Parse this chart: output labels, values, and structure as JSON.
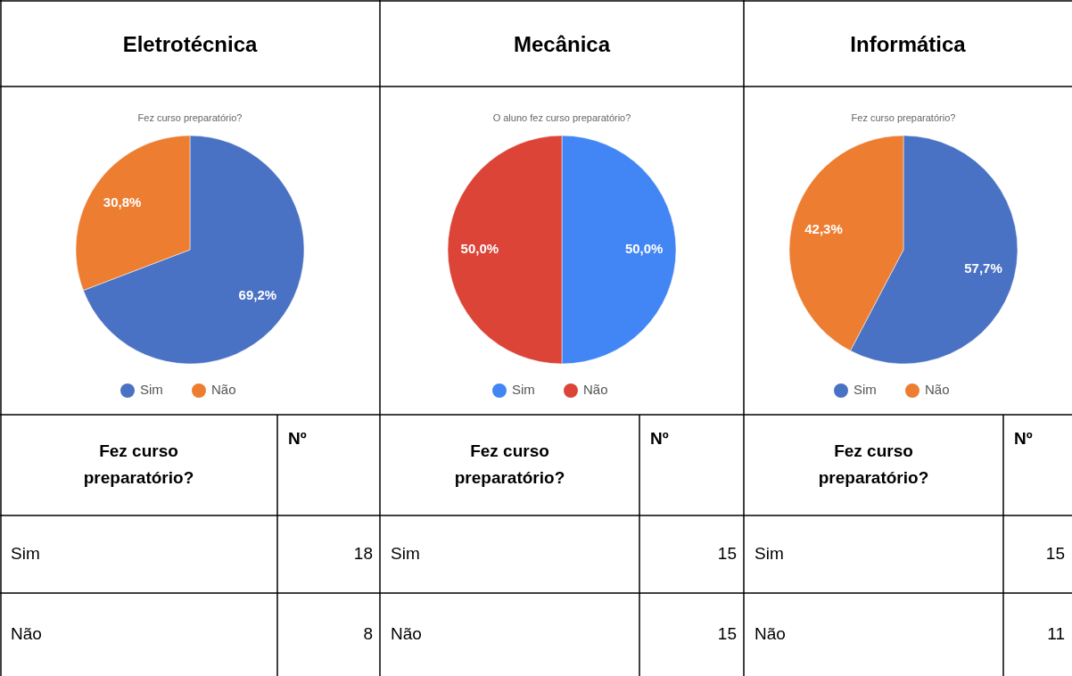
{
  "chart_data": [
    {
      "type": "pie",
      "title": "Eletrotécnica",
      "subtitle": "Fez curso preparatório?",
      "categories": [
        "Sim",
        "Não"
      ],
      "values": [
        69.2,
        30.8
      ],
      "value_labels": [
        "69,2%",
        "30,8%"
      ],
      "colors": [
        "#4a72c4",
        "#ed7d31"
      ],
      "legend": "bottom",
      "annotations": [
        "Fez curso preparatório?",
        "Nº",
        "Sim",
        "18",
        "Não",
        "8"
      ]
    },
    {
      "type": "pie",
      "title": "Mecânica",
      "subtitle": "O aluno fez curso preparatório?",
      "categories": [
        "Sim",
        "Não"
      ],
      "values": [
        50.0,
        50.0
      ],
      "value_labels": [
        "50,0%",
        "50,0%"
      ],
      "colors": [
        "#4285f4",
        "#db4437"
      ],
      "legend": "bottom",
      "annotations": [
        "Fez curso preparatório?",
        "Nº",
        "Sim",
        "15",
        "Não",
        "15"
      ]
    },
    {
      "type": "pie",
      "title": "Informática",
      "subtitle": "Fez curso preparatório?",
      "categories": [
        "Sim",
        "Não"
      ],
      "values": [
        57.7,
        42.3
      ],
      "value_labels": [
        "57,7%",
        "42,3%"
      ],
      "colors": [
        "#4a72c4",
        "#ed7d31"
      ],
      "legend": "bottom",
      "annotations": [
        "Fez curso preparatório?",
        "Nº",
        "Sim",
        "15",
        "Não",
        "11"
      ]
    }
  ]
}
